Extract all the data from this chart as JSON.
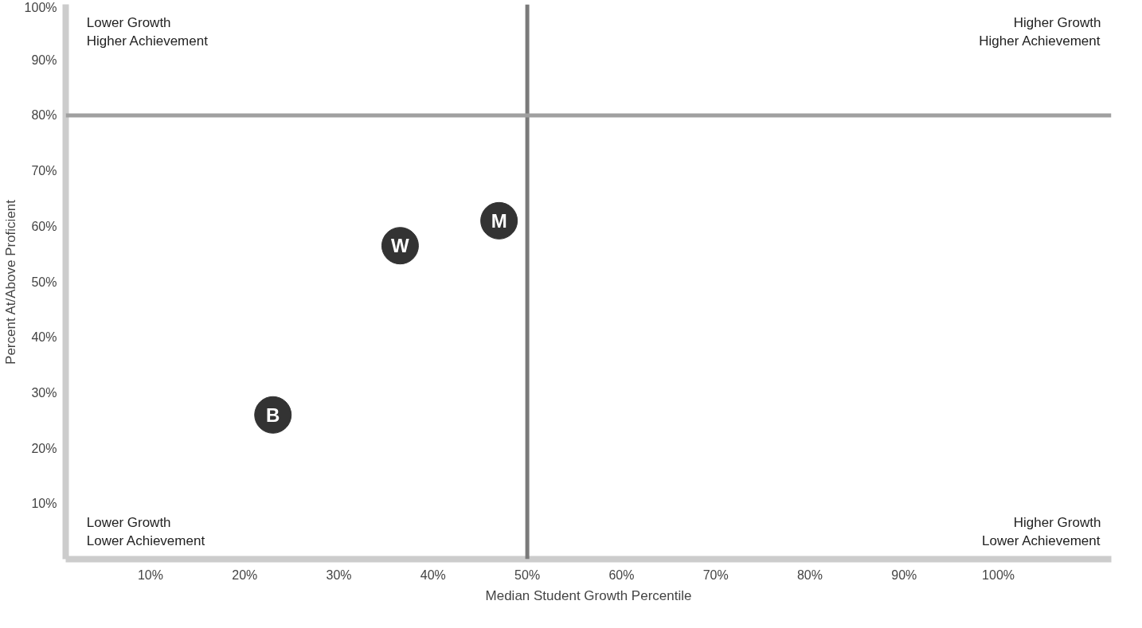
{
  "chart_data": {
    "type": "scatter",
    "xlabel": "Median Student Growth Percentile",
    "ylabel": "Percent At/Above Proficient",
    "x": [
      23,
      36.5,
      47
    ],
    "values": [
      26,
      56.5,
      61
    ],
    "color": "#333333",
    "marker": "circle",
    "grid": false,
    "xlim": [
      1,
      112
    ],
    "ylim": [
      0,
      100
    ],
    "xticks": [
      {
        "value": 10,
        "label": "10%"
      },
      {
        "value": 20,
        "label": "20%"
      },
      {
        "value": 30,
        "label": "30%"
      },
      {
        "value": 40,
        "label": "40%"
      },
      {
        "value": 50,
        "label": "50%"
      },
      {
        "value": 60,
        "label": "60%"
      },
      {
        "value": 70,
        "label": "70%"
      },
      {
        "value": 80,
        "label": "80%"
      },
      {
        "value": 90,
        "label": "90%"
      },
      {
        "value": 100,
        "label": "100%"
      }
    ],
    "yticks": [
      {
        "value": 10,
        "label": "10%"
      },
      {
        "value": 20,
        "label": "20%"
      },
      {
        "value": 30,
        "label": "30%"
      },
      {
        "value": 40,
        "label": "40%"
      },
      {
        "value": 50,
        "label": "50%"
      },
      {
        "value": 60,
        "label": "60%"
      },
      {
        "value": 70,
        "label": "70%"
      },
      {
        "value": 80,
        "label": "80%"
      },
      {
        "value": 90,
        "label": "90%"
      },
      {
        "value": 100,
        "label": "100%"
      }
    ],
    "ref_lines": [
      {
        "axis": "x",
        "value": 50,
        "color": "#7a7a7a"
      },
      {
        "axis": "y",
        "value": 80,
        "color": "#a0a0a0"
      }
    ],
    "annotations": [
      {
        "text": "B",
        "x": 23,
        "y": 26
      },
      {
        "text": "W",
        "x": 36.5,
        "y": 56.5
      },
      {
        "text": "M",
        "x": 47,
        "y": 61
      },
      "Lower Growth\nHigher Achievement",
      "Higher Growth\nHigher Achievement",
      "Lower Growth\nLower Achievement",
      "Higher Growth\nLower Achievement"
    ]
  }
}
